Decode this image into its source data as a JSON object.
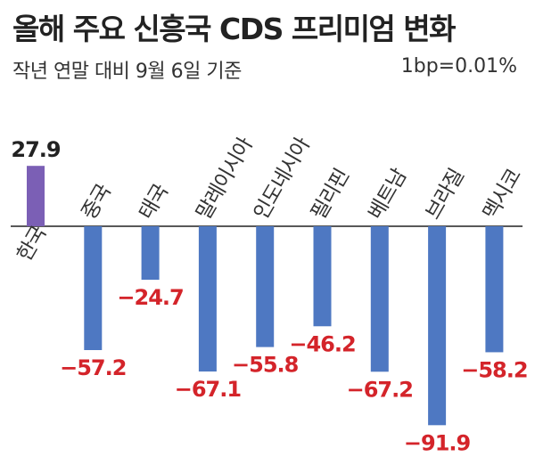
{
  "title": "올해 주요 신흥국 CDS 프리미엄 변화",
  "subtitle": "작년 연말 대비 9월 6일 기준",
  "unit_note": "1bp=0.01%",
  "colors": {
    "positive": "#7b5fb5",
    "negative": "#4e78c2",
    "positive_label": "#222222",
    "negative_label": "#d4242a",
    "category_label": "#333333",
    "baseline": "#222222"
  },
  "chart_data": {
    "type": "bar",
    "title": "올해 주요 신흥국 CDS 프리미엄 변화",
    "subtitle": "작년 연말 대비 9월 6일 기준",
    "unit": "1bp=0.01%",
    "categories": [
      "한국",
      "중국",
      "태국",
      "말레이시아",
      "인도네시아",
      "필리핀",
      "베트남",
      "브라질",
      "멕시코"
    ],
    "values": [
      27.9,
      -57.2,
      -24.7,
      -67.1,
      -55.8,
      -46.2,
      -67.2,
      -91.9,
      -58.2
    ],
    "value_labels": [
      "27.9",
      "−57.2",
      "−24.7",
      "−67.1",
      "−55.8",
      "−46.2",
      "−67.2",
      "−91.9",
      "−58.2"
    ],
    "ylim": [
      -91.9,
      27.9
    ],
    "grid": false,
    "legend": "none"
  }
}
